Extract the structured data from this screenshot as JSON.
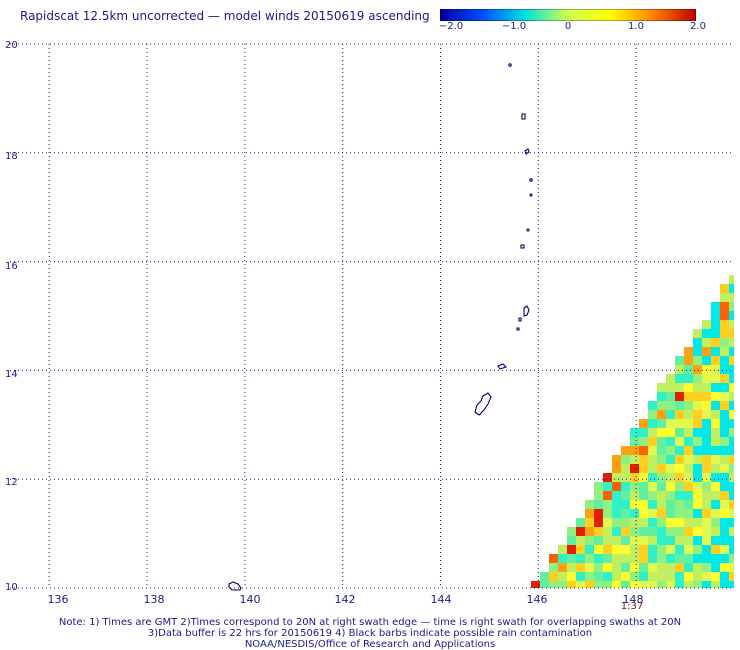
{
  "title": "Rapidscat 12.5km uncorrected — model winds 20150619 ascending",
  "colorbar": {
    "labels": [
      "−2.0",
      "−1.0",
      "0",
      "1.0",
      "2.0"
    ],
    "range": [
      -2.0,
      2.0
    ],
    "colors": [
      "#0000a0",
      "#0050ff",
      "#00e0e0",
      "#d0ff50",
      "#ffff00",
      "#ff8000",
      "#c00000"
    ]
  },
  "map": {
    "lat_labels": [
      "20",
      "18",
      "16",
      "14",
      "12",
      "10"
    ],
    "lon_labels": [
      "136",
      "138",
      "140",
      "142",
      "144",
      "146",
      "148"
    ],
    "lat_range": [
      10,
      20
    ],
    "lon_range": [
      135.2,
      150
    ],
    "swath_time": "1:37",
    "swath_time_lon": 148,
    "grid_color": "#1a1a8c",
    "coast_color": "#00006e"
  },
  "notes": [
    "Note: 1) Times are GMT 2)Times correspond to 20N at right swath edge — time is right swath for overlapping swaths at 20N",
    "3)Data buffer is 22 hrs for 20150619 4) Black barbs indicate possible rain contamination",
    "NOAA/NESDIS/Office of Research and Applications"
  ]
}
